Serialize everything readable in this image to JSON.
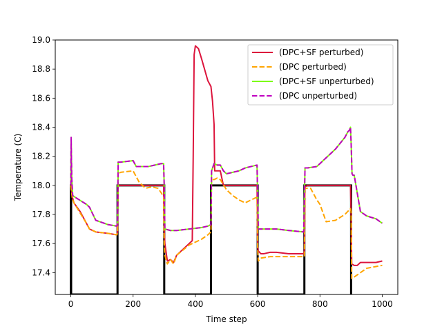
{
  "chart_data": {
    "type": "line",
    "xlabel": "Time step",
    "ylabel": "Temperature (C)",
    "xlim": [
      -50,
      1050
    ],
    "ylim": [
      17.25,
      19.0
    ],
    "xticks": [
      "0",
      "200",
      "400",
      "600",
      "800",
      "1000"
    ],
    "yticks": [
      "17.4",
      "17.6",
      "17.8",
      "18.0",
      "18.2",
      "18.4",
      "18.6",
      "18.8",
      "19.0"
    ],
    "grid": false,
    "legend_position": "top-right",
    "reference": {
      "color": "#000000",
      "x": [
        0,
        0,
        1,
        1,
        150,
        150,
        151,
        151,
        300,
        300,
        301,
        301,
        450,
        450,
        451,
        451,
        600,
        600,
        601,
        601,
        750,
        750,
        751,
        751,
        900,
        900,
        901,
        901
      ],
      "y": [
        17.25,
        18.0,
        18.0,
        17.25,
        17.25,
        18.0,
        18.0,
        18.0,
        18.0,
        17.25,
        17.25,
        17.25,
        17.25,
        18.0,
        18.0,
        18.0,
        18.0,
        17.25,
        17.25,
        17.25,
        17.25,
        18.0,
        18.0,
        18.0,
        18.0,
        17.25,
        17.25,
        17.25
      ]
    },
    "series": [
      {
        "name": "(DPC+SF perturbed)",
        "color": "#dc143c",
        "dash": "solid",
        "x": [
          0,
          2,
          5,
          10,
          30,
          50,
          60,
          80,
          120,
          148,
          150,
          152,
          160,
          200,
          210,
          298,
          300,
          302,
          310,
          320,
          330,
          340,
          380,
          390,
          393,
          396,
          400,
          410,
          420,
          440,
          450,
          455,
          460,
          462,
          465,
          468,
          470,
          480,
          490,
          500,
          550,
          598,
          600,
          602,
          610,
          620,
          640,
          660,
          700,
          748,
          750,
          752,
          760,
          800,
          850,
          898,
          900,
          902,
          910,
          920,
          930,
          980,
          1000
        ],
        "y": [
          18.0,
          17.97,
          17.92,
          17.88,
          17.82,
          17.74,
          17.7,
          17.68,
          17.67,
          17.66,
          17.68,
          18.0,
          18.0,
          18.0,
          18.0,
          18.0,
          17.7,
          17.6,
          17.48,
          17.49,
          17.47,
          17.52,
          17.6,
          17.62,
          18.2,
          18.9,
          18.96,
          18.94,
          18.87,
          18.72,
          18.68,
          18.58,
          18.42,
          18.1,
          18.1,
          18.1,
          18.1,
          18.1,
          18.0,
          18.0,
          18.0,
          18.0,
          17.58,
          17.55,
          17.53,
          17.53,
          17.54,
          17.54,
          17.53,
          17.53,
          17.55,
          17.99,
          18.0,
          18.0,
          18.0,
          18.0,
          17.8,
          17.46,
          17.45,
          17.45,
          17.47,
          17.47,
          17.48
        ]
      },
      {
        "name": "(DPC perturbed)",
        "color": "#ffa500",
        "dash": "dashed",
        "x": [
          0,
          2,
          5,
          10,
          30,
          50,
          60,
          80,
          120,
          148,
          150,
          152,
          160,
          200,
          210,
          220,
          230,
          240,
          260,
          280,
          290,
          298,
          300,
          302,
          310,
          320,
          330,
          340,
          380,
          420,
          440,
          450,
          452,
          460,
          470,
          480,
          500,
          520,
          540,
          560,
          598,
          600,
          602,
          610,
          640,
          700,
          748,
          750,
          752,
          770,
          790,
          800,
          820,
          850,
          880,
          898,
          900,
          902,
          910,
          950,
          1000
        ],
        "y": [
          18.0,
          17.96,
          17.91,
          17.88,
          17.81,
          17.74,
          17.7,
          17.68,
          17.67,
          17.66,
          17.68,
          18.08,
          18.09,
          18.1,
          18.06,
          18.02,
          18.0,
          17.98,
          17.99,
          17.98,
          17.95,
          17.92,
          17.6,
          17.52,
          17.46,
          17.49,
          17.46,
          17.52,
          17.59,
          17.63,
          17.66,
          17.68,
          18.04,
          18.04,
          18.05,
          18.04,
          17.97,
          17.93,
          17.9,
          17.88,
          17.92,
          17.56,
          17.48,
          17.5,
          17.51,
          17.51,
          17.51,
          17.51,
          17.98,
          17.98,
          17.9,
          17.87,
          17.75,
          17.76,
          17.8,
          17.84,
          17.82,
          17.36,
          17.37,
          17.43,
          17.45
        ]
      },
      {
        "name": "(DPC+SF unperturbed)",
        "color": "#7cfc00",
        "dash": "solid",
        "x": [
          0,
          1,
          3,
          6,
          20,
          50,
          60,
          80,
          120,
          148,
          150,
          152,
          160,
          200,
          210,
          250,
          290,
          298,
          300,
          302,
          320,
          340,
          380,
          420,
          440,
          450,
          452,
          460,
          470,
          480,
          490,
          500,
          540,
          560,
          598,
          600,
          602,
          620,
          660,
          700,
          748,
          750,
          752,
          760,
          790,
          800,
          850,
          880,
          890,
          895,
          898,
          900,
          903,
          906,
          910,
          930,
          950,
          980,
          1000
        ],
        "y": [
          18.0,
          18.33,
          18.05,
          17.93,
          17.91,
          17.87,
          17.85,
          17.76,
          17.73,
          17.72,
          17.75,
          18.16,
          18.16,
          18.17,
          18.13,
          18.13,
          18.15,
          18.15,
          17.99,
          17.7,
          17.69,
          17.69,
          17.7,
          17.71,
          17.72,
          17.73,
          18.1,
          18.15,
          18.14,
          18.14,
          18.1,
          18.08,
          18.1,
          18.12,
          18.14,
          17.9,
          17.7,
          17.7,
          17.7,
          17.69,
          17.68,
          17.9,
          18.12,
          18.12,
          18.13,
          18.15,
          18.25,
          18.33,
          18.37,
          18.38,
          18.4,
          18.3,
          18.08,
          18.07,
          18.07,
          17.82,
          17.79,
          17.77,
          17.74
        ]
      },
      {
        "name": "(DPC unperturbed)",
        "color": "#c000c0",
        "dash": "dashed",
        "x": [
          0,
          1,
          3,
          6,
          20,
          50,
          60,
          80,
          120,
          148,
          150,
          152,
          160,
          200,
          210,
          250,
          290,
          298,
          300,
          302,
          320,
          340,
          380,
          420,
          440,
          450,
          452,
          460,
          470,
          480,
          490,
          500,
          540,
          560,
          598,
          600,
          602,
          620,
          660,
          700,
          748,
          750,
          752,
          760,
          790,
          800,
          850,
          880,
          890,
          895,
          898,
          900,
          903,
          906,
          910,
          930,
          950,
          980,
          1000
        ],
        "y": [
          18.0,
          18.33,
          18.05,
          17.93,
          17.91,
          17.87,
          17.85,
          17.76,
          17.73,
          17.72,
          17.75,
          18.16,
          18.16,
          18.17,
          18.13,
          18.13,
          18.15,
          18.15,
          17.99,
          17.7,
          17.69,
          17.69,
          17.7,
          17.71,
          17.72,
          17.73,
          18.1,
          18.15,
          18.14,
          18.14,
          18.1,
          18.08,
          18.1,
          18.12,
          18.14,
          17.9,
          17.7,
          17.7,
          17.7,
          17.69,
          17.68,
          17.9,
          18.12,
          18.12,
          18.13,
          18.15,
          18.25,
          18.33,
          18.37,
          18.38,
          18.4,
          18.3,
          18.08,
          18.07,
          18.07,
          17.82,
          17.79,
          17.77,
          17.74
        ]
      }
    ]
  }
}
